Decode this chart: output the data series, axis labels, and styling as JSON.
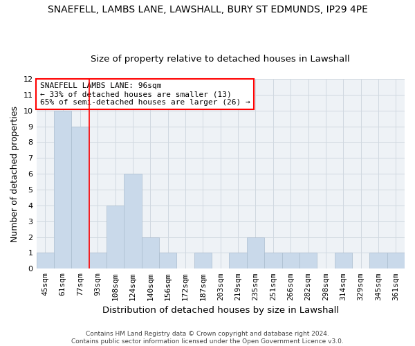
{
  "title": "SNAEFELL, LAMBS LANE, LAWSHALL, BURY ST EDMUNDS, IP29 4PE",
  "subtitle": "Size of property relative to detached houses in Lawshall",
  "xlabel": "Distribution of detached houses by size in Lawshall",
  "ylabel": "Number of detached properties",
  "categories": [
    "45sqm",
    "61sqm",
    "77sqm",
    "93sqm",
    "108sqm",
    "124sqm",
    "140sqm",
    "156sqm",
    "172sqm",
    "187sqm",
    "203sqm",
    "219sqm",
    "235sqm",
    "251sqm",
    "266sqm",
    "282sqm",
    "298sqm",
    "314sqm",
    "329sqm",
    "345sqm",
    "361sqm"
  ],
  "values": [
    1,
    10,
    9,
    1,
    4,
    6,
    2,
    1,
    0,
    1,
    0,
    1,
    2,
    1,
    1,
    1,
    0,
    1,
    0,
    1,
    1
  ],
  "bar_color": "#c9d9ea",
  "bar_edgecolor": "#aabcce",
  "annotation_line1": "SNAEFELL LAMBS LANE: 96sqm",
  "annotation_line2": "← 33% of detached houses are smaller (13)",
  "annotation_line3": "65% of semi-detached houses are larger (26) →",
  "annotation_box_color": "white",
  "annotation_box_edgecolor": "red",
  "red_line_bar_index": 2,
  "ylim": [
    0,
    12
  ],
  "yticks": [
    0,
    1,
    2,
    3,
    4,
    5,
    6,
    7,
    8,
    9,
    10,
    11,
    12
  ],
  "footer": "Contains HM Land Registry data © Crown copyright and database right 2024.\nContains public sector information licensed under the Open Government Licence v3.0.",
  "background_color": "#eef2f6",
  "grid_color": "#d0d8e0",
  "title_fontsize": 10,
  "subtitle_fontsize": 9.5,
  "tick_fontsize": 8,
  "ylabel_fontsize": 9,
  "xlabel_fontsize": 9.5,
  "annotation_fontsize": 8,
  "footer_fontsize": 6.5
}
